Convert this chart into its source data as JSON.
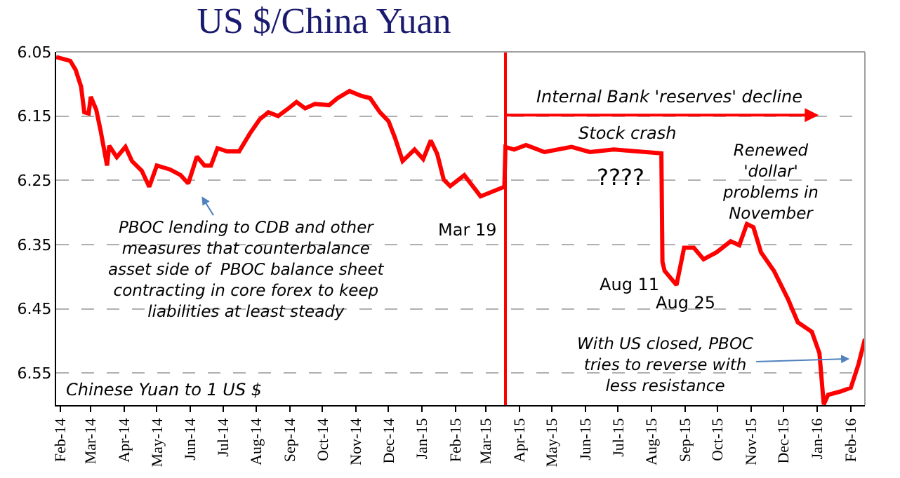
{
  "chart_data": {
    "type": "line",
    "title": "US $/China Yuan",
    "x": [
      "2014-01-28",
      "2014-02-10",
      "2014-02-15",
      "2014-02-20",
      "2014-02-23",
      "2014-02-27",
      "2014-03-01",
      "2014-03-06",
      "2014-03-10",
      "2014-03-16",
      "2014-03-18",
      "2014-03-25",
      "2014-04-02",
      "2014-04-08",
      "2014-04-17",
      "2014-04-24",
      "2014-05-01",
      "2014-05-13",
      "2014-05-23",
      "2014-05-30",
      "2014-06-07",
      "2014-06-14",
      "2014-06-20",
      "2014-06-26",
      "2014-07-05",
      "2014-07-16",
      "2014-07-26",
      "2014-08-04",
      "2014-08-12",
      "2014-08-21",
      "2014-08-29",
      "2014-09-07",
      "2014-09-15",
      "2014-09-24",
      "2014-10-07",
      "2014-10-15",
      "2014-10-26",
      "2014-11-05",
      "2014-11-14",
      "2014-11-23",
      "2014-12-01",
      "2014-12-07",
      "2014-12-14",
      "2014-12-25",
      "2015-01-02",
      "2015-01-09",
      "2015-01-15",
      "2015-01-21",
      "2015-01-27",
      "2015-02-09",
      "2015-02-24",
      "2015-03-18",
      "2015-03-19",
      "2015-03-27",
      "2015-04-07",
      "2015-04-24",
      "2015-05-19",
      "2015-06-05",
      "2015-06-27",
      "2015-08-10",
      "2015-08-11",
      "2015-08-13",
      "2015-08-24",
      "2015-08-31",
      "2015-09-09",
      "2015-09-18",
      "2015-09-30",
      "2015-10-13",
      "2015-10-21",
      "2015-10-28",
      "2015-11-03",
      "2015-11-10",
      "2015-11-22",
      "2015-12-05",
      "2015-12-14",
      "2015-12-27",
      "2016-01-03",
      "2016-01-07",
      "2016-01-11",
      "2016-01-22",
      "2016-02-01",
      "2016-02-08",
      "2016-02-14"
    ],
    "series": [
      {
        "color": "#ff0000",
        "values": [
          6.058,
          6.064,
          6.078,
          6.104,
          6.144,
          6.146,
          6.12,
          6.14,
          6.172,
          6.227,
          6.196,
          6.214,
          6.198,
          6.22,
          6.235,
          6.26,
          6.227,
          6.233,
          6.242,
          6.255,
          6.213,
          6.227,
          6.227,
          6.2,
          6.205,
          6.205,
          6.177,
          6.155,
          6.144,
          6.15,
          6.14,
          6.128,
          6.138,
          6.131,
          6.133,
          6.122,
          6.111,
          6.118,
          6.122,
          6.144,
          6.158,
          6.184,
          6.22,
          6.202,
          6.217,
          6.188,
          6.209,
          6.249,
          6.259,
          6.242,
          6.275,
          6.26,
          6.198,
          6.202,
          6.195,
          6.206,
          6.198,
          6.206,
          6.202,
          6.208,
          6.377,
          6.391,
          6.413,
          6.355,
          6.355,
          6.373,
          6.362,
          6.345,
          6.351,
          6.318,
          6.323,
          6.362,
          6.391,
          6.435,
          6.471,
          6.486,
          6.519,
          6.599,
          6.584,
          6.579,
          6.573,
          6.537,
          6.497
        ]
      }
    ],
    "xlim": [
      "2014-01-28",
      "2016-02-14"
    ],
    "xticks": [
      {
        "value": "2014-02-01",
        "label": "Feb-14"
      },
      {
        "value": "2014-03-01",
        "label": "Mar-14"
      },
      {
        "value": "2014-04-01",
        "label": "Apr-14"
      },
      {
        "value": "2014-05-01",
        "label": "May-14"
      },
      {
        "value": "2014-06-01",
        "label": "Jun-14"
      },
      {
        "value": "2014-07-01",
        "label": "Jul-14"
      },
      {
        "value": "2014-08-01",
        "label": "Aug-14"
      },
      {
        "value": "2014-09-01",
        "label": "Sep-14"
      },
      {
        "value": "2014-10-01",
        "label": "Oct-14"
      },
      {
        "value": "2014-11-01",
        "label": "Nov-14"
      },
      {
        "value": "2014-12-01",
        "label": "Dec-14"
      },
      {
        "value": "2015-01-01",
        "label": "Jan-15"
      },
      {
        "value": "2015-02-01",
        "label": "Feb-15"
      },
      {
        "value": "2015-03-01",
        "label": "Mar-15"
      },
      {
        "value": "2015-04-01",
        "label": "Apr-15"
      },
      {
        "value": "2015-05-01",
        "label": "May-15"
      },
      {
        "value": "2015-06-01",
        "label": "Jun-15"
      },
      {
        "value": "2015-07-01",
        "label": "Jul-15"
      },
      {
        "value": "2015-08-01",
        "label": "Aug-15"
      },
      {
        "value": "2015-09-01",
        "label": "Sep-15"
      },
      {
        "value": "2015-10-01",
        "label": "Oct-15"
      },
      {
        "value": "2015-11-01",
        "label": "Nov-15"
      },
      {
        "value": "2015-12-01",
        "label": "Dec-15"
      },
      {
        "value": "2016-01-01",
        "label": "Jan-16"
      },
      {
        "value": "2016-02-01",
        "label": "Feb-16"
      }
    ],
    "ylim": [
      6.6,
      6.05
    ],
    "yticks": [
      6.05,
      6.15,
      6.25,
      6.35,
      6.45,
      6.55
    ],
    "ref_lines": [
      {
        "axis": "x",
        "value": "2015-03-19",
        "color": "#ff0000"
      }
    ],
    "annotations": [
      "Internal Bank 'reserves' decline",
      "Stock crash",
      "????",
      "Renewed\n'dollar'\nproblems in\nNovember",
      {
        "text": "Mar 19",
        "x": "2015-03-18",
        "y": 6.26
      },
      {
        "text": "Aug 11",
        "x": "2015-08-11",
        "y": 6.391
      },
      {
        "text": "Aug 25",
        "x": "2015-08-24",
        "y": 6.413
      },
      "PBOC lending to CDB and other\nmeasures that counterbalance\nasset side of  PBOC balance sheet\ncontracting in core forex to keep\nliabilities at least steady",
      "With US closed, PBOC\ntries to reverse with\nless resistance",
      "Chinese Yuan to 1 US $"
    ],
    "grid": "y",
    "marker": "none",
    "line_style": "solid"
  }
}
